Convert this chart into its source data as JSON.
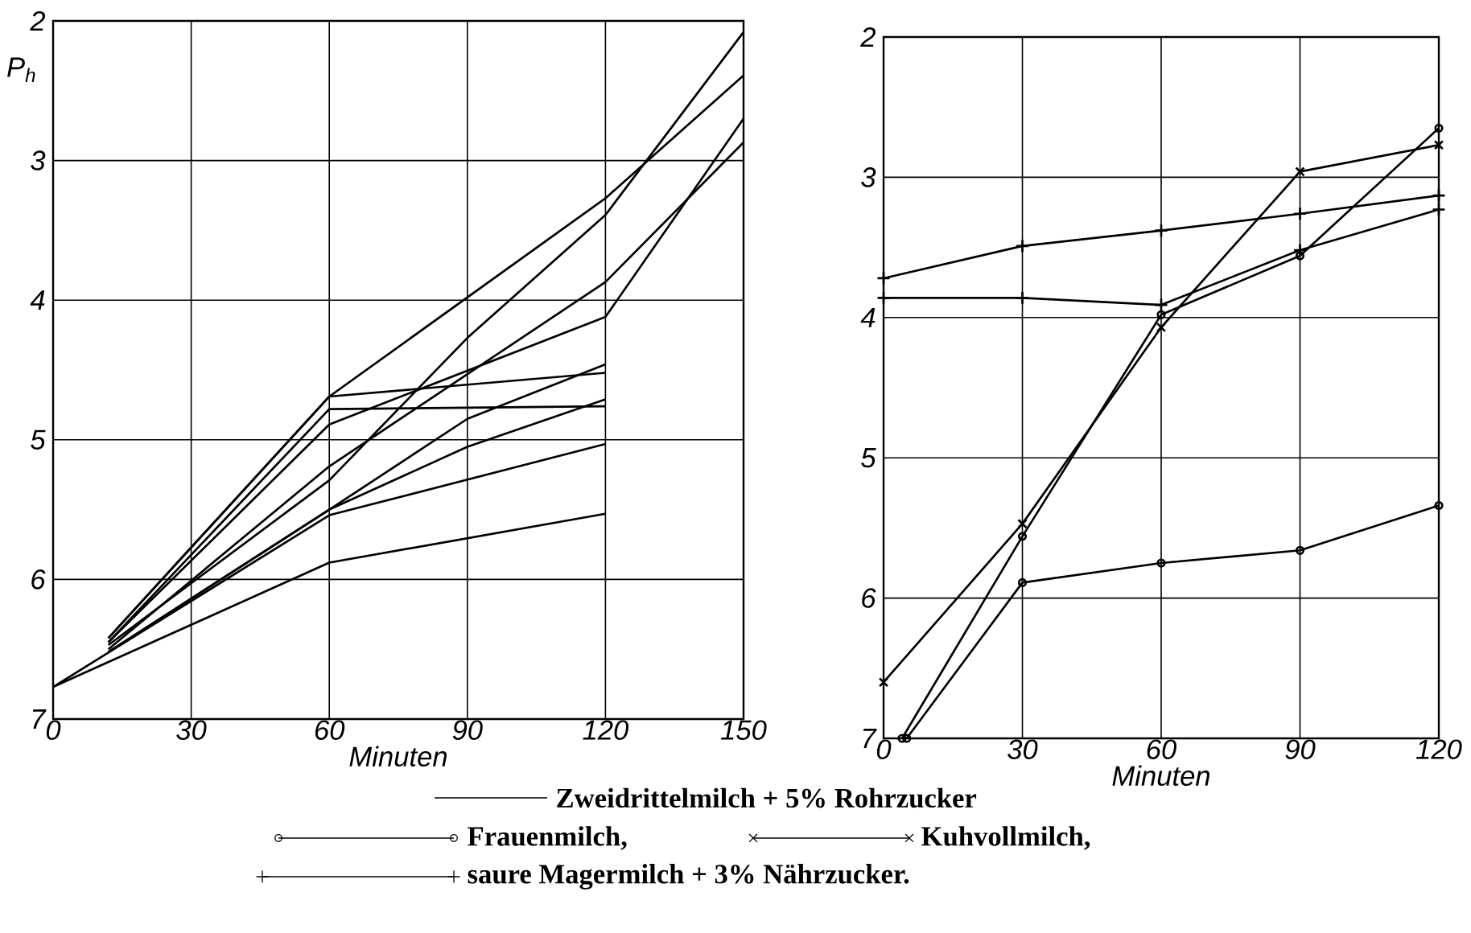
{
  "chart_data": [
    {
      "type": "line",
      "xlabel": "Minuten",
      "ylabel": "P$_{h}$",
      "xlim": [
        0,
        150
      ],
      "ylim": [
        7,
        2
      ],
      "xticks": [
        0,
        30,
        60,
        90,
        120,
        150
      ],
      "yticks": [
        2,
        3,
        4,
        5,
        6,
        7
      ],
      "grid": true,
      "legend": "bottom",
      "series": [
        {
          "name": "Zweidrittelmilch + 5% Rohrzucker",
          "color": "#000000",
          "x": [
            12,
            60,
            120,
            150
          ],
          "values": [
            6.42,
            4.69,
            3.27,
            2.39
          ]
        },
        {
          "color": "#000000",
          "x": [
            12,
            60,
            90,
            120,
            150
          ],
          "values": [
            6.47,
            5.29,
            4.27,
            3.39,
            2.08
          ]
        },
        {
          "color": "#000000",
          "x": [
            12,
            60,
            120,
            150
          ],
          "values": [
            6.45,
            4.89,
            4.12,
            2.7
          ]
        },
        {
          "color": "#000000",
          "x": [
            12,
            60,
            120,
            150
          ],
          "values": [
            6.5,
            5.19,
            3.87,
            2.87
          ]
        },
        {
          "color": "#000000",
          "x": [
            12,
            60,
            120
          ],
          "values": [
            6.42,
            4.69,
            4.52
          ]
        },
        {
          "color": "#000000",
          "x": [
            12,
            60,
            120
          ],
          "values": [
            6.45,
            4.78,
            4.76
          ]
        },
        {
          "color": "#000000",
          "x": [
            12,
            60,
            90,
            120
          ],
          "values": [
            6.52,
            5.5,
            4.85,
            4.46
          ]
        },
        {
          "color": "#000000",
          "x": [
            12,
            60,
            90,
            120
          ],
          "values": [
            6.52,
            5.5,
            5.05,
            4.71
          ]
        },
        {
          "color": "#000000",
          "x": [
            0,
            60,
            120
          ],
          "values": [
            6.77,
            5.54,
            5.03
          ]
        },
        {
          "color": "#000000",
          "x": [
            0,
            60,
            120
          ],
          "values": [
            6.77,
            5.88,
            5.53
          ]
        }
      ]
    },
    {
      "type": "line",
      "xlabel": "Minuten",
      "xlim": [
        0,
        120
      ],
      "ylim": [
        7,
        2
      ],
      "xticks": [
        0,
        30,
        60,
        90,
        120
      ],
      "yticks": [
        2,
        3,
        4,
        5,
        6,
        7
      ],
      "grid": true,
      "legend": "bottom",
      "series": [
        {
          "name": "Frauenmilch,",
          "color": "#000000",
          "marker": "circle",
          "x": [
            5,
            30,
            60,
            90,
            120
          ],
          "values": [
            7,
            5.89,
            5.75,
            5.66,
            5.34
          ]
        },
        {
          "name": "Kuhvollmilch,",
          "color": "#000000",
          "marker": "cross",
          "x": [
            0,
            30,
            60,
            90,
            120
          ],
          "values": [
            6.6,
            5.47,
            4.07,
            2.96,
            2.77
          ]
        },
        {
          "name": "saure Magermilch + 3% Nährzucker.",
          "color": "#000000",
          "marker": "plus",
          "x": [
            0,
            30,
            60,
            90,
            120
          ],
          "values": [
            3.72,
            3.49,
            3.38,
            3.26,
            3.13
          ]
        },
        {
          "color": "#000000",
          "marker": "circle",
          "x": [
            4,
            30,
            60,
            90,
            120
          ],
          "values": [
            7,
            5.56,
            3.98,
            3.56,
            2.65
          ]
        },
        {
          "color": "#000000",
          "marker": "plus",
          "x": [
            0,
            30,
            60,
            90,
            120
          ],
          "values": [
            3.86,
            3.86,
            3.91,
            3.52,
            3.23
          ]
        }
      ]
    }
  ]
}
